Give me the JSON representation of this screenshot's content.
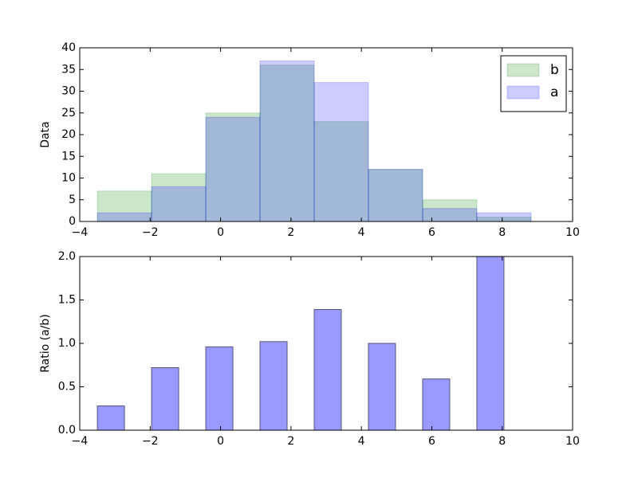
{
  "chart_data": [
    {
      "type": "histogram",
      "ylabel": "Data",
      "bins": [
        -3.5,
        -1.96,
        -0.42,
        1.12,
        2.66,
        4.2,
        5.74,
        7.28,
        8.82
      ],
      "series": [
        {
          "name": "b",
          "color": "#008000",
          "values": [
            7,
            11,
            25,
            36,
            23,
            12,
            5,
            1
          ]
        },
        {
          "name": "a",
          "color": "#0000ff",
          "values": [
            2,
            8,
            24,
            37,
            32,
            12,
            3,
            2
          ]
        }
      ],
      "alpha": 0.2,
      "legend": "upper right",
      "xlim": [
        -4,
        10
      ],
      "xticks": [
        {
          "value": -4,
          "label": "−4"
        },
        {
          "value": -2,
          "label": "−2"
        },
        0,
        2,
        4,
        6,
        8,
        10
      ],
      "ylim": [
        0,
        40
      ],
      "yticks": [
        0,
        5,
        10,
        15,
        20,
        25,
        30,
        35,
        40
      ]
    },
    {
      "type": "bar",
      "ylabel": "Ratio (a/b)",
      "x": [
        -3.5,
        -1.96,
        -0.42,
        1.12,
        2.66,
        4.2,
        5.74,
        7.28
      ],
      "values": [
        0.28,
        0.72,
        0.96,
        1.02,
        1.39,
        1.0,
        0.59,
        2.0
      ],
      "color": "#0000ff",
      "alpha": 0.4,
      "xlim": [
        -4,
        10
      ],
      "xticks": [
        {
          "value": -4,
          "label": "−4"
        },
        {
          "value": -2,
          "label": "−2"
        },
        0,
        2,
        4,
        6,
        8,
        10
      ],
      "ylim": [
        0,
        2
      ],
      "yticks": [
        {
          "value": 0,
          "label": "0.0"
        },
        0.5,
        {
          "value": 1,
          "label": "1.0"
        },
        1.5,
        {
          "value": 2,
          "label": "2.0"
        }
      ]
    }
  ]
}
